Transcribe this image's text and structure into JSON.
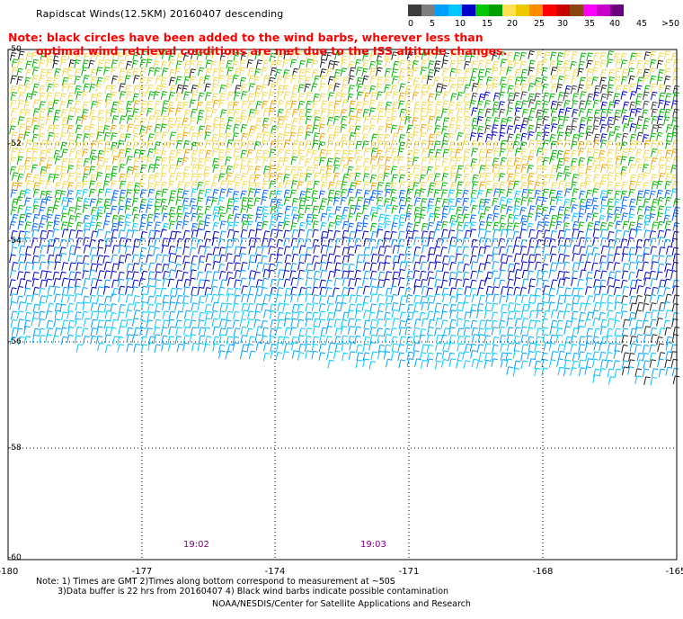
{
  "title": "Rapidscat Winds(12.5KM) 20160407 descending",
  "note_line1": "Note: black circles have been added to the wind barbs, wherever less than",
  "note_line2": "optimal wind retrieval conditions are met due to the ISS altitude changes.",
  "colorbar": {
    "colors": [
      "#3c3c3c",
      "#7f7f7f",
      "#00a0ff",
      "#00c8ff",
      "#0000c8",
      "#00c800",
      "#00a000",
      "#ffe050",
      "#f0c800",
      "#ff8c00",
      "#ff0000",
      "#c80000",
      "#8b4513",
      "#ff00ff",
      "#c800c8",
      "#6a0080"
    ],
    "labels": [
      "0",
      "5",
      "10",
      "15",
      "20",
      "25",
      "30",
      "35",
      "40",
      "45",
      ">50 knots"
    ]
  },
  "axes": {
    "lon_ticks": [
      "-180",
      "-177",
      "-174",
      "-171",
      "-168",
      "-165"
    ],
    "lat_ticks": [
      "-50",
      "-52",
      "-54",
      "-56",
      "-58",
      "-60"
    ],
    "lon_range": [
      -180,
      -165
    ],
    "lat_range": [
      -60,
      -50
    ]
  },
  "time_labels": [
    "19:02",
    "19:03"
  ],
  "footnote_line1": "Note: 1) Times are GMT 2)Times along bottom correspond to measurement at ~50S",
  "footnote_line2": "3)Data buffer is 22 hrs from 20160407 4) Black wind barbs indicate possible contamination",
  "credit": "NOAA/NESDIS/Center for Satellite Applications and Research"
}
